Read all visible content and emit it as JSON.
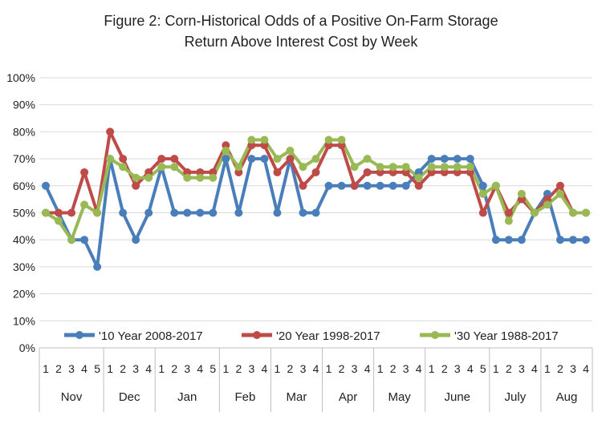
{
  "chart_data": {
    "type": "line",
    "title_line1": "Figure 2: Corn-Historical Odds of a Positive On-Farm Storage",
    "title_line2": "Return Above Interest Cost by Week",
    "ylim": [
      0,
      100
    ],
    "yticks": [
      "0%",
      "10%",
      "20%",
      "30%",
      "40%",
      "50%",
      "60%",
      "70%",
      "80%",
      "90%",
      "100%"
    ],
    "months": [
      {
        "name": "Nov",
        "weeks": [
          "1",
          "2",
          "3",
          "4",
          "5"
        ]
      },
      {
        "name": "Dec",
        "weeks": [
          "1",
          "2",
          "3",
          "4"
        ]
      },
      {
        "name": "Jan",
        "weeks": [
          "1",
          "2",
          "3",
          "4",
          "5"
        ]
      },
      {
        "name": "Feb",
        "weeks": [
          "1",
          "2",
          "3",
          "4"
        ]
      },
      {
        "name": "Mar",
        "weeks": [
          "1",
          "2",
          "3",
          "4"
        ]
      },
      {
        "name": "Apr",
        "weeks": [
          "1",
          "2",
          "3",
          "4"
        ]
      },
      {
        "name": "May",
        "weeks": [
          "1",
          "2",
          "3",
          "4"
        ]
      },
      {
        "name": "June",
        "weeks": [
          "1",
          "2",
          "3",
          "4",
          "5"
        ]
      },
      {
        "name": "July",
        "weeks": [
          "1",
          "2",
          "3",
          "4"
        ]
      },
      {
        "name": "Aug",
        "weeks": [
          "1",
          "2",
          "3",
          "4"
        ]
      }
    ],
    "series": [
      {
        "name": "'10 Year 2008-2017",
        "color": "#4a7ebb",
        "values": [
          60,
          50,
          40,
          40,
          30,
          70,
          50,
          40,
          50,
          67,
          50,
          50,
          50,
          50,
          70,
          50,
          70,
          70,
          50,
          70,
          50,
          50,
          60,
          60,
          60,
          60,
          60,
          60,
          60,
          65,
          70,
          70,
          70,
          70,
          60,
          40,
          40,
          40,
          50,
          57,
          40,
          40,
          40
        ]
      },
      {
        "name": "'20 Year 1998-2017",
        "color": "#be4b48",
        "values": [
          50,
          50,
          50,
          65,
          50,
          80,
          70,
          60,
          65,
          70,
          70,
          65,
          65,
          65,
          75,
          65,
          75,
          75,
          65,
          70,
          60,
          65,
          75,
          75,
          60,
          65,
          65,
          65,
          65,
          60,
          65,
          65,
          65,
          65,
          50,
          60,
          50,
          55,
          50,
          55,
          60,
          50,
          50
        ]
      },
      {
        "name": "'30 Year 1988-2017",
        "color": "#98b954",
        "values": [
          50,
          47,
          40,
          53,
          50,
          70,
          67,
          63,
          63,
          67,
          67,
          63,
          63,
          63,
          73,
          67,
          77,
          77,
          70,
          73,
          67,
          70,
          77,
          77,
          67,
          70,
          67,
          67,
          67,
          63,
          67,
          67,
          67,
          67,
          57,
          60,
          47,
          57,
          50,
          53,
          57,
          50,
          50
        ]
      }
    ]
  }
}
